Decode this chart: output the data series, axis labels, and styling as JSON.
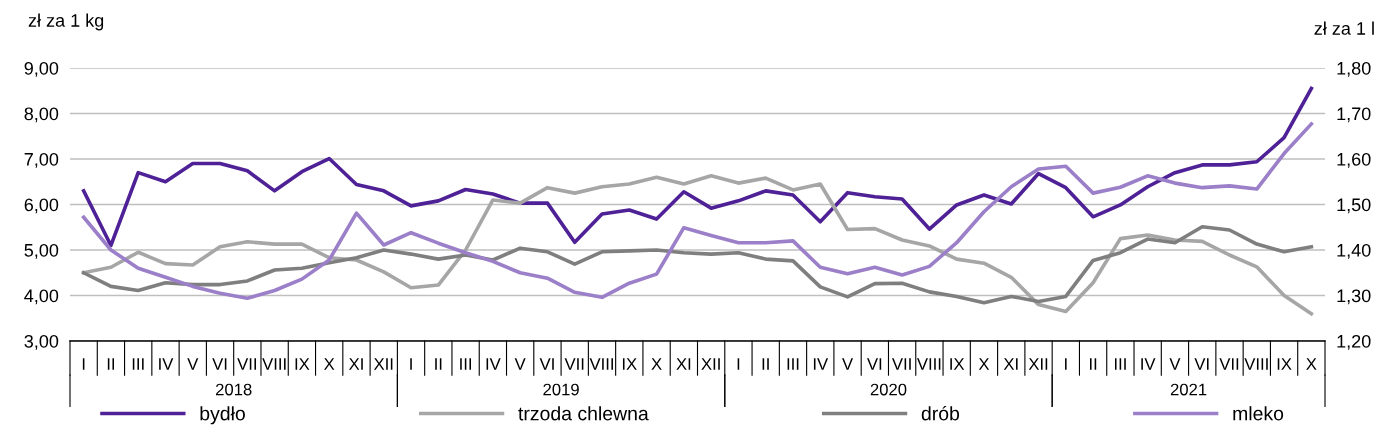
{
  "chart_data": {
    "type": "line",
    "ylabel": "zł za 1 kg",
    "y2label": "zł za 1 l",
    "categories": [
      "I",
      "II",
      "III",
      "IV",
      "V",
      "VI",
      "VII",
      "VIII",
      "IX",
      "X",
      "XI",
      "XII",
      "I",
      "II",
      "III",
      "IV",
      "V",
      "VI",
      "VII",
      "VIII",
      "IX",
      "X",
      "XI",
      "XII",
      "I",
      "II",
      "III",
      "IV",
      "V",
      "VI",
      "VII",
      "VIII",
      "IX",
      "X",
      "XI",
      "XII",
      "I",
      "II",
      "III",
      "IV",
      "V",
      "VI",
      "VII",
      "VIII",
      "IX",
      "X"
    ],
    "annotations": [
      "2018",
      "2019",
      "2020",
      "2021"
    ],
    "ylim": [
      3,
      9
    ],
    "yticks": [
      {
        "value": 3,
        "label": "3,00"
      },
      {
        "value": 4,
        "label": "4,00"
      },
      {
        "value": 5,
        "label": "5,00"
      },
      {
        "value": 6,
        "label": "6,00"
      },
      {
        "value": 7,
        "label": "7,00"
      },
      {
        "value": 8,
        "label": "8,00"
      },
      {
        "value": 9,
        "label": "9,00"
      }
    ],
    "y2lim": [
      1.2,
      1.8
    ],
    "y2ticks": [
      {
        "value": 1.2,
        "label": "1,20"
      },
      {
        "value": 1.3,
        "label": "1,30"
      },
      {
        "value": 1.4,
        "label": "1,40"
      },
      {
        "value": 1.5,
        "label": "1,50"
      },
      {
        "value": 1.6,
        "label": "1,60"
      },
      {
        "value": 1.7,
        "label": "1,70"
      },
      {
        "value": 1.8,
        "label": "1,80"
      }
    ],
    "grid": "y",
    "legend": "bottom",
    "marker": "none",
    "line_style": "solid",
    "series": [
      {
        "name": "bydło",
        "color": "#4f2196",
        "values": [
          6.3,
          5.1,
          6.7,
          6.5,
          6.9,
          6.9,
          6.74,
          6.3,
          6.72,
          7.01,
          6.44,
          6.3,
          5.97,
          6.08,
          6.33,
          6.23,
          6.03,
          6.03,
          5.17,
          5.79,
          5.88,
          5.68,
          6.28,
          5.92,
          6.08,
          6.3,
          6.21,
          5.62,
          6.26,
          6.17,
          6.12,
          5.46,
          5.99,
          6.21,
          6.01,
          6.68,
          6.37,
          5.73,
          5.99,
          6.39,
          6.7,
          6.87,
          6.87,
          6.94,
          7.47,
          8.55
        ]
      },
      {
        "name": "trzoda chlewna",
        "color": "#a6a6a6",
        "values": [
          4.5,
          4.62,
          4.95,
          4.7,
          4.67,
          5.07,
          5.18,
          5.13,
          5.13,
          4.83,
          4.78,
          4.52,
          4.17,
          4.23,
          5.0,
          6.1,
          6.03,
          6.37,
          6.25,
          6.39,
          6.45,
          6.6,
          6.45,
          6.63,
          6.47,
          6.58,
          6.32,
          6.45,
          5.45,
          5.47,
          5.22,
          5.09,
          4.8,
          4.71,
          4.4,
          3.8,
          3.65,
          4.28,
          5.25,
          5.33,
          5.22,
          5.19,
          4.89,
          4.63,
          4.0,
          3.6
        ]
      },
      {
        "name": "drób",
        "color": "#7f7f7f",
        "values": [
          4.5,
          4.2,
          4.11,
          4.28,
          4.24,
          4.24,
          4.32,
          4.56,
          4.6,
          4.72,
          4.83,
          5.0,
          4.91,
          4.8,
          4.89,
          4.78,
          5.04,
          4.96,
          4.69,
          4.96,
          4.98,
          5.0,
          4.94,
          4.91,
          4.94,
          4.8,
          4.76,
          4.19,
          3.97,
          4.26,
          4.27,
          4.08,
          3.98,
          3.84,
          3.98,
          3.87,
          3.98,
          4.77,
          4.94,
          5.24,
          5.16,
          5.51,
          5.44,
          5.13,
          4.96,
          5.07
        ]
      },
      {
        "name": "mleko",
        "color": "#9b7fc8",
        "axis": "y2",
        "values": [
          1.472,
          1.4,
          1.36,
          1.34,
          1.32,
          1.305,
          1.294,
          1.311,
          1.336,
          1.378,
          1.481,
          1.411,
          1.438,
          1.415,
          1.394,
          1.375,
          1.35,
          1.338,
          1.307,
          1.296,
          1.327,
          1.347,
          1.449,
          1.432,
          1.416,
          1.416,
          1.42,
          1.362,
          1.348,
          1.362,
          1.345,
          1.364,
          1.416,
          1.484,
          1.539,
          1.578,
          1.584,
          1.525,
          1.538,
          1.563,
          1.547,
          1.537,
          1.541,
          1.534,
          1.612,
          1.677
        ]
      }
    ]
  }
}
